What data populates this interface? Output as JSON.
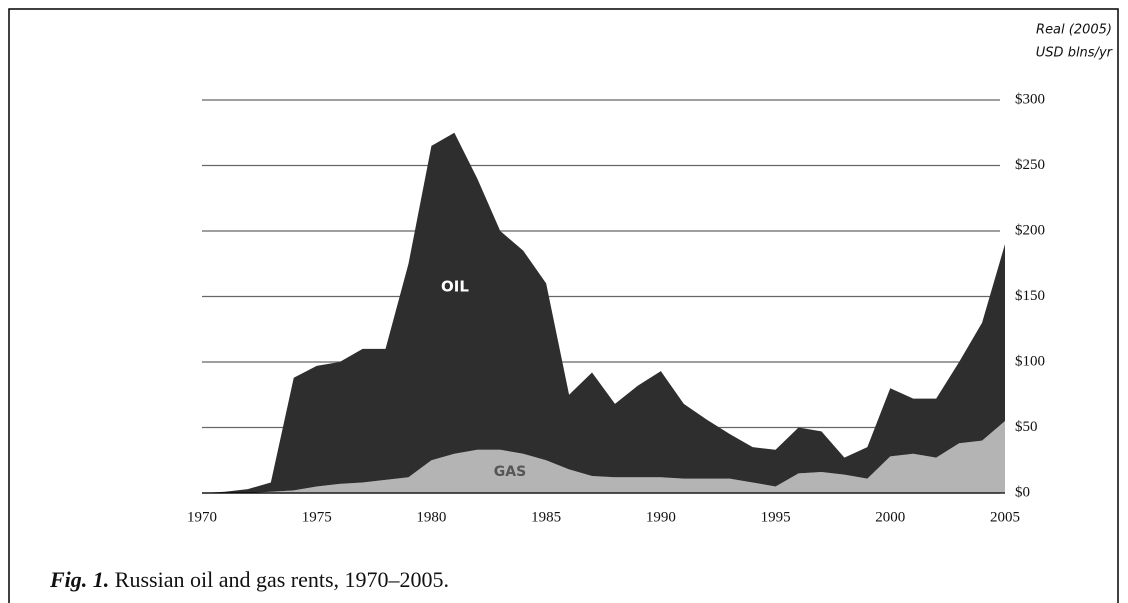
{
  "chart_data": {
    "type": "stacked_area",
    "y_axis_label": [
      "Real (2005)",
      "USD blns/yr"
    ],
    "caption_label": "Fig. 1.",
    "caption": "Russian oil and gas rents, 1970–2005.",
    "annotations": [
      "OIL",
      "GAS"
    ],
    "x": [
      1970,
      1971,
      1972,
      1973,
      1974,
      1975,
      1976,
      1977,
      1978,
      1979,
      1980,
      1981,
      1982,
      1983,
      1984,
      1985,
      1986,
      1987,
      1988,
      1989,
      1990,
      1991,
      1992,
      1993,
      1994,
      1995,
      1996,
      1997,
      1998,
      1999,
      2000,
      2001,
      2002,
      2003,
      2004,
      2005
    ],
    "series": [
      {
        "name": "GAS",
        "color": "#b4b4b4",
        "values": [
          0,
          0,
          0,
          1,
          2,
          5,
          7,
          8,
          10,
          12,
          25,
          30,
          33,
          33,
          30,
          25,
          18,
          13,
          12,
          12,
          12,
          11,
          11,
          11,
          8,
          5,
          15,
          16,
          14,
          11,
          28,
          30,
          27,
          38,
          40,
          55
        ]
      },
      {
        "name": "OIL",
        "color": "#2e2e2e",
        "values": [
          0,
          1,
          3,
          7,
          86,
          92,
          93,
          102,
          100,
          163,
          240,
          245,
          207,
          167,
          155,
          135,
          57,
          79,
          56,
          70,
          81,
          57,
          45,
          34,
          27,
          28,
          35,
          31,
          13,
          24,
          52,
          42,
          45,
          62,
          90,
          135
        ]
      }
    ],
    "xlim": [
      1970,
      2005
    ],
    "xticks": [
      1970,
      1975,
      1980,
      1985,
      1990,
      1995,
      2000,
      2005
    ],
    "ylim": [
      0,
      300
    ],
    "yticks": [
      {
        "value": 0,
        "label": "$0"
      },
      {
        "value": 50,
        "label": "$50"
      },
      {
        "value": 100,
        "label": "$100"
      },
      {
        "value": 150,
        "label": "$150"
      },
      {
        "value": 200,
        "label": "$200"
      },
      {
        "value": 250,
        "label": "$250"
      },
      {
        "value": 300,
        "label": "$300"
      }
    ],
    "grid": true
  }
}
